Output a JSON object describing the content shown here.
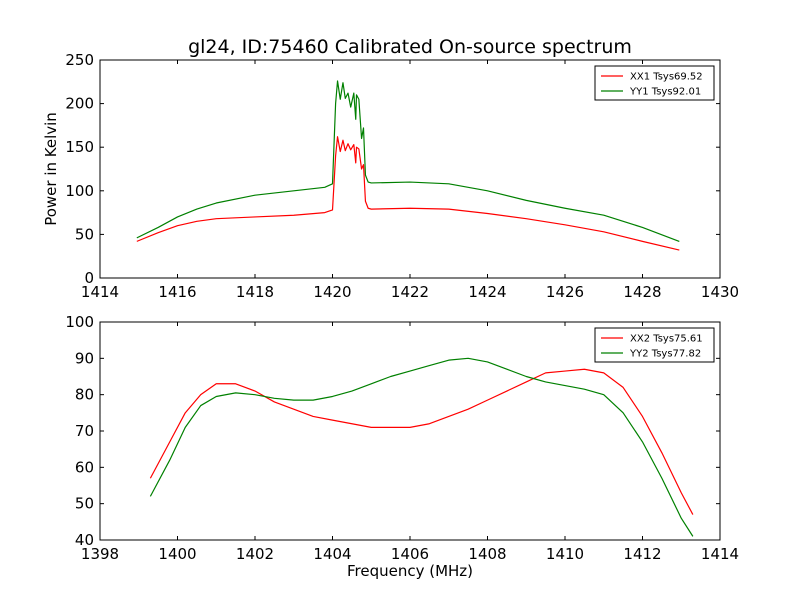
{
  "title": "gl24, ID:75460 Calibrated On-source spectrum",
  "colors": {
    "xx": "#ff0000",
    "yy": "#008000"
  },
  "chart_data": [
    {
      "type": "line",
      "xlabel": "",
      "ylabel": "Power in Kelvin",
      "xlim": [
        1414,
        1430
      ],
      "ylim": [
        0,
        250
      ],
      "xticks": [
        "1414",
        "1416",
        "1418",
        "1420",
        "1422",
        "1424",
        "1426",
        "1428",
        "1430"
      ],
      "yticks": [
        "0",
        "50",
        "100",
        "150",
        "200",
        "250"
      ],
      "legend_position": "top-right",
      "series": [
        {
          "name": "XX1 Tsys69.52",
          "color": "#ff0000",
          "x": [
            1414.95,
            1415.5,
            1416,
            1416.5,
            1417,
            1418,
            1419,
            1419.8,
            1420.0,
            1420.08,
            1420.13,
            1420.2,
            1420.27,
            1420.33,
            1420.4,
            1420.47,
            1420.55,
            1420.6,
            1420.62,
            1420.68,
            1420.75,
            1420.8,
            1420.85,
            1420.92,
            1421,
            1422,
            1423,
            1424,
            1425,
            1426,
            1427,
            1428,
            1428.95
          ],
          "y": [
            42,
            52,
            60,
            65,
            68,
            70,
            72,
            75,
            78,
            140,
            162,
            145,
            158,
            146,
            154,
            147,
            153,
            132,
            150,
            148,
            125,
            130,
            88,
            80,
            79,
            80,
            79,
            74,
            68,
            61,
            53,
            42,
            32
          ]
        },
        {
          "name": "YY1 Tsys92.01",
          "color": "#008000",
          "x": [
            1414.95,
            1415.5,
            1416,
            1416.5,
            1417,
            1418,
            1419,
            1419.8,
            1420.0,
            1420.08,
            1420.13,
            1420.2,
            1420.27,
            1420.33,
            1420.4,
            1420.47,
            1420.55,
            1420.6,
            1420.62,
            1420.68,
            1420.75,
            1420.8,
            1420.85,
            1420.92,
            1421,
            1422,
            1423,
            1424,
            1425,
            1426,
            1427,
            1428,
            1428.95
          ],
          "y": [
            46,
            58,
            70,
            79,
            86,
            95,
            100,
            104,
            108,
            200,
            226,
            205,
            224,
            206,
            212,
            196,
            212,
            182,
            210,
            205,
            160,
            172,
            118,
            110,
            109,
            110,
            108,
            100,
            89,
            80,
            72,
            58,
            42
          ]
        }
      ]
    },
    {
      "type": "line",
      "xlabel": "Frequency (MHz)",
      "ylabel": "",
      "xlim": [
        1398,
        1414
      ],
      "ylim": [
        40,
        100
      ],
      "xticks": [
        "1398",
        "1400",
        "1402",
        "1404",
        "1406",
        "1408",
        "1410",
        "1412",
        "1414"
      ],
      "yticks": [
        "40",
        "50",
        "60",
        "70",
        "80",
        "90",
        "100"
      ],
      "legend_position": "top-right",
      "series": [
        {
          "name": "XX2 Tsys75.61",
          "color": "#ff0000",
          "x": [
            1399.3,
            1399.8,
            1400.2,
            1400.6,
            1401.0,
            1401.5,
            1402.0,
            1402.5,
            1403.0,
            1403.5,
            1404.0,
            1404.5,
            1405.0,
            1405.5,
            1406.0,
            1406.5,
            1407.0,
            1407.5,
            1408.0,
            1408.5,
            1409.0,
            1409.5,
            1410.0,
            1410.5,
            1411.0,
            1411.5,
            1412.0,
            1412.5,
            1413.0,
            1413.3
          ],
          "y": [
            57,
            67,
            75,
            80,
            83,
            83,
            81,
            78,
            76,
            74,
            73,
            72,
            71,
            71,
            71,
            72,
            74,
            76,
            78.5,
            81,
            83.5,
            86,
            86.5,
            87,
            86,
            82,
            74,
            64,
            53,
            47
          ]
        },
        {
          "name": "YY2 Tsys77.82",
          "color": "#008000",
          "x": [
            1399.3,
            1399.8,
            1400.2,
            1400.6,
            1401.0,
            1401.5,
            1402.0,
            1402.5,
            1403.0,
            1403.5,
            1404.0,
            1404.5,
            1405.0,
            1405.5,
            1406.0,
            1406.5,
            1407.0,
            1407.5,
            1408.0,
            1408.5,
            1409.0,
            1409.5,
            1410.0,
            1410.5,
            1411.0,
            1411.5,
            1412.0,
            1412.5,
            1413.0,
            1413.3
          ],
          "y": [
            52,
            62,
            71,
            77,
            79.5,
            80.5,
            80,
            79,
            78.5,
            78.5,
            79.5,
            81,
            83,
            85,
            86.5,
            88,
            89.5,
            90,
            89,
            87,
            85,
            83.5,
            82.5,
            81.5,
            80,
            75,
            67,
            57,
            46,
            41
          ]
        }
      ]
    }
  ]
}
